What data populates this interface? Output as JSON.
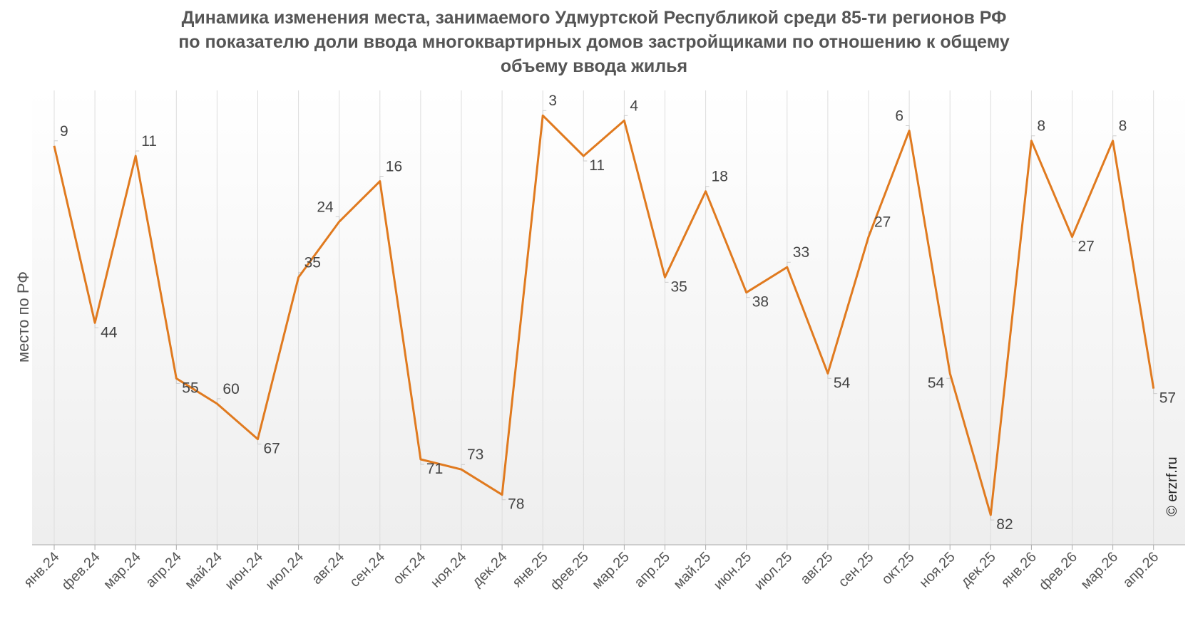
{
  "chart_data": {
    "type": "line",
    "title_lines": [
      "Динамика изменения места, занимаемого Удмуртской Республикой среди 85-ти регионов РФ",
      "по показателю доли ввода многоквартирных домов застройщиками по отношению к общему",
      "объему ввода жилья"
    ],
    "ylabel": "место по РФ",
    "xlabel": "",
    "y_reversed": true,
    "ylim": [
      1,
      85
    ],
    "grid": "vertical",
    "categories": [
      "янв.24",
      "фев.24",
      "мар.24",
      "апр.24",
      "май.24",
      "июн.24",
      "июл.24",
      "авг.24",
      "сен.24",
      "окт.24",
      "ноя.24",
      "дек.24",
      "янв.25",
      "фев.25",
      "мар.25",
      "апр.25",
      "май.25",
      "июн.25",
      "июл.25",
      "авг.25",
      "сен.25",
      "окт.25",
      "ноя.25",
      "дек.25",
      "янв.26",
      "фев.26",
      "мар.26",
      "апр.26"
    ],
    "series": [
      {
        "values": [
          9,
          44,
          11,
          55,
          60,
          67,
          35,
          24,
          16,
          71,
          73,
          78,
          3,
          11,
          4,
          35,
          18,
          38,
          33,
          54,
          27,
          6,
          54,
          82,
          8,
          27,
          8,
          57
        ]
      }
    ]
  },
  "copyright": "© erzrf.ru",
  "colors": {
    "line": "#E07A1F",
    "grid": "#dddddd",
    "text": "#555555"
  }
}
